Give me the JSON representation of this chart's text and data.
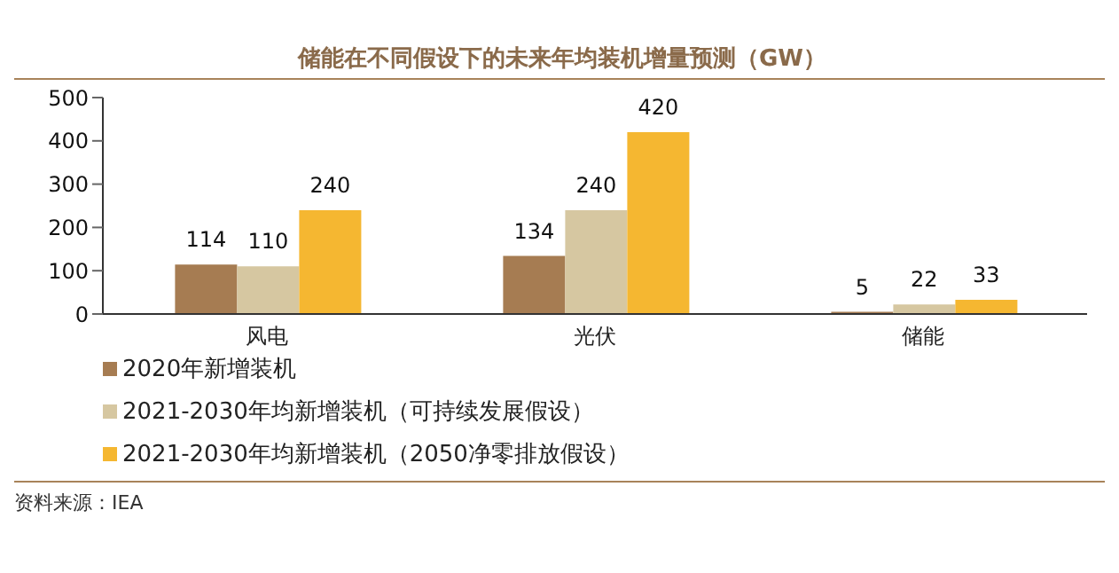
{
  "chart_data": {
    "type": "bar",
    "title": "储能在不同假设下的未来年均装机增量预测（GW）",
    "categories": [
      "风电",
      "光伏",
      "储能"
    ],
    "series": [
      {
        "name": "2020年新增装机",
        "color": "#a67c52",
        "values": [
          114,
          134,
          5
        ]
      },
      {
        "name": "2021-2030年均新增装机（可持续发展假设）",
        "color": "#d6c7a1",
        "values": [
          110,
          240,
          22
        ]
      },
      {
        "name": "2021-2030年均新增装机（2050净零排放假设）",
        "color": "#f5b731",
        "values": [
          240,
          420,
          33
        ]
      }
    ],
    "ylim": [
      0,
      500
    ],
    "yticks": [
      0,
      100,
      200,
      300,
      400,
      500
    ],
    "grid": false,
    "legend": "bottom",
    "data_labels": true,
    "annotations": [
      "资料来源：IEA"
    ]
  }
}
